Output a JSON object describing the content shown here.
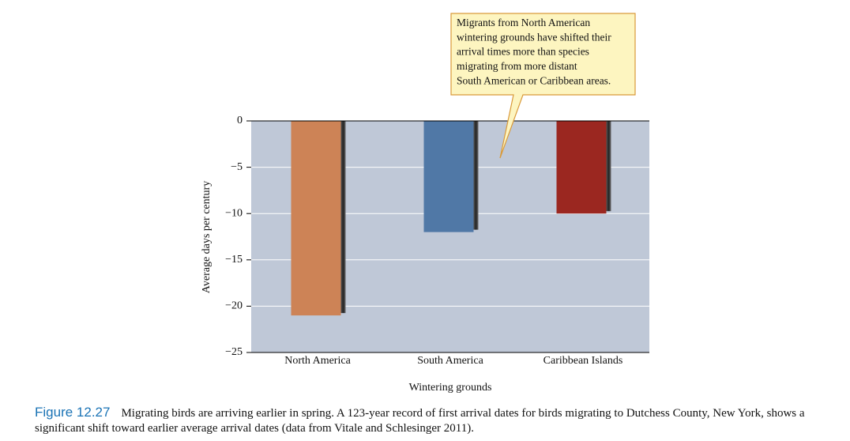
{
  "chart_data": {
    "type": "bar",
    "annotation": [
      "Migrants from North American",
      "wintering grounds have shifted their",
      "arrival times more than species",
      "migrating from more distant",
      "South American or Caribbean areas."
    ],
    "xlabel": "Wintering grounds",
    "ylabel": "Average days per century",
    "categories": [
      "North America",
      "South America",
      "Caribbean Islands"
    ],
    "values": [
      -21,
      -12,
      -10
    ],
    "colors": [
      "#cd8356",
      "#5078a6",
      "#9b2720"
    ],
    "ylim": [
      -25,
      0
    ],
    "yticks": [
      0,
      {
        "value": -5,
        "label": "−5"
      },
      {
        "value": -10,
        "label": "−10"
      },
      {
        "value": -15,
        "label": "−15"
      },
      {
        "value": -20,
        "label": "−20"
      },
      {
        "value": -25,
        "label": "−25"
      }
    ],
    "grid": true
  },
  "caption": {
    "label": "Figure 12.27",
    "text": "Migrating birds are arriving earlier in spring. A 123-year record of first arrival dates for birds migrating to Dutchess County, New York, shows a significant shift toward earlier average arrival dates (data from Vitale and Schlesinger 2011)."
  }
}
